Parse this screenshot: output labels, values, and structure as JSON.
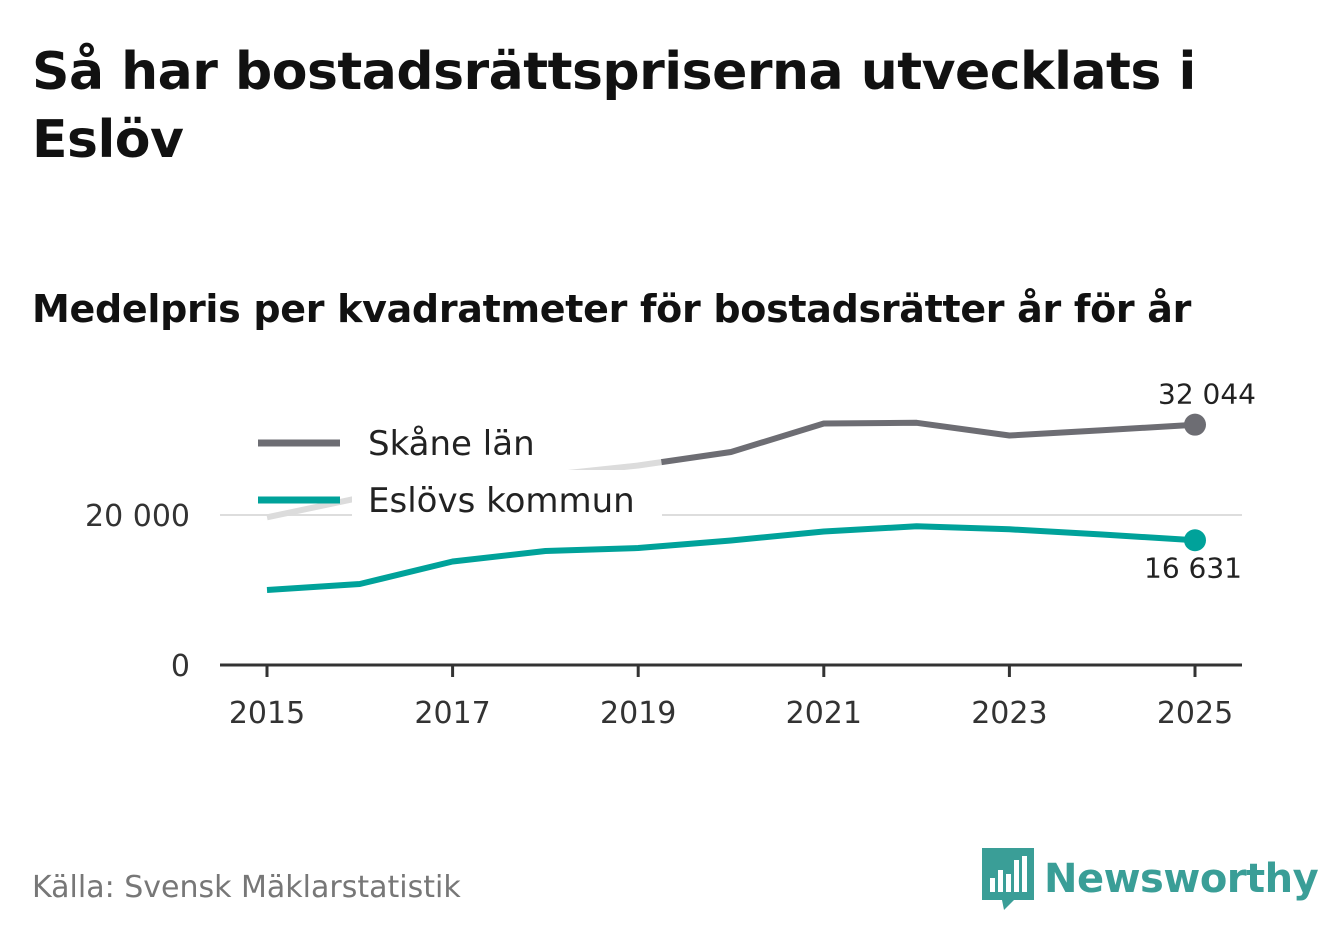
{
  "title": "Så har bostadsrättspriserna utvecklats i Eslöv",
  "subtitle": "Medelpris per kvadratmeter för bostadsrätter år för år",
  "source": "Källa: Svensk Mäklarstatistik",
  "logo": {
    "text": "Newsworthy",
    "icon": "bar-chart-speech-bubble-icon"
  },
  "colors": {
    "skane": "#6d6d73",
    "skane_faded": "#dcdcdc",
    "eslov": "#00a29a",
    "axis": "#333333",
    "grid": "#dddddd",
    "logo": "#3a9e97"
  },
  "chart_data": {
    "type": "line",
    "title": "Så har bostadsrättspriserna utvecklats i Eslöv",
    "subtitle": "Medelpris per kvadratmeter för bostadsrätter år för år",
    "xlabel": "",
    "ylabel": "",
    "x": [
      2015,
      2016,
      2017,
      2018,
      2019,
      2020,
      2021,
      2022,
      2023,
      2024,
      2025
    ],
    "xticks": [
      2015,
      2017,
      2019,
      2021,
      2023,
      2025
    ],
    "xtick_labels": [
      "2015",
      "2017",
      "2019",
      "2021",
      "2023",
      "2025"
    ],
    "ylim": [
      0,
      34000
    ],
    "yticks": [
      0,
      20000
    ],
    "ytick_labels": [
      "0",
      "20 000"
    ],
    "grid": true,
    "legend_position": "upper-left",
    "series": [
      {
        "name": "Skåne län",
        "color": "#6d6d73",
        "values": [
          19700,
          22300,
          25500,
          25300,
          26600,
          28400,
          32200,
          32300,
          30600,
          31300,
          32044
        ],
        "end_label": "32 044"
      },
      {
        "name": "Eslövs kommun",
        "color": "#00a29a",
        "values": [
          10000,
          10800,
          13800,
          15200,
          15600,
          16600,
          17800,
          18500,
          18100,
          17400,
          16631
        ],
        "end_label": "16 631"
      }
    ]
  }
}
